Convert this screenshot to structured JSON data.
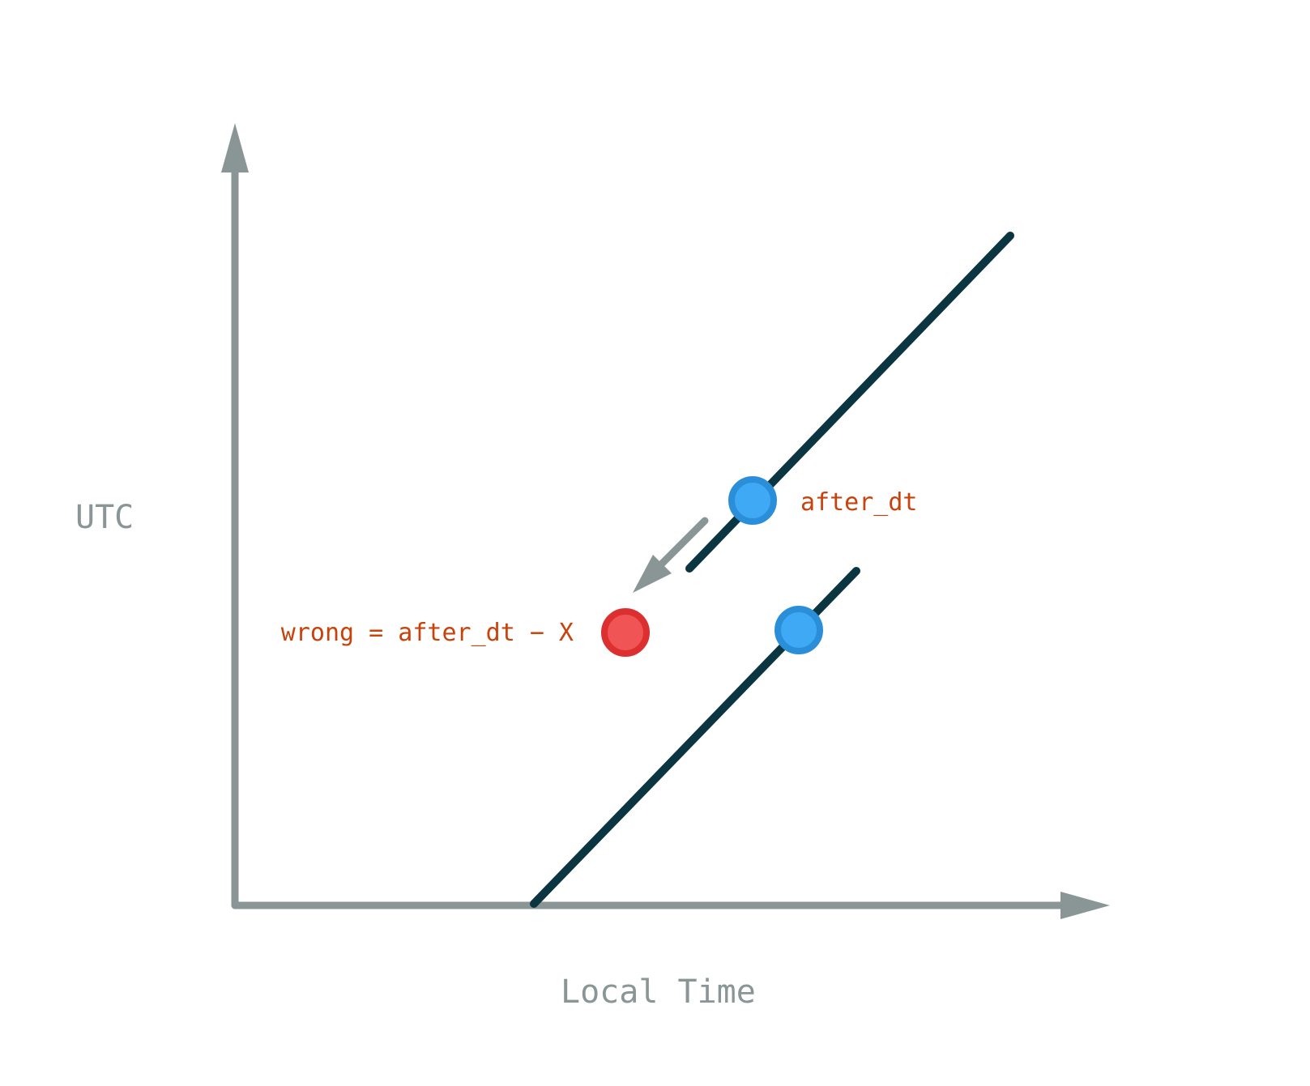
{
  "axes": {
    "x_label": "Local Time",
    "y_label": "UTC"
  },
  "annotations": {
    "after_dt": "after_dt",
    "wrong": "wrong = after_dt − X"
  },
  "colors": {
    "axis": "#8a9696",
    "line": "#0b3540",
    "point_fill": "#3fa9f5",
    "point_stroke": "#2a8ed8",
    "wrong_fill": "#f05454",
    "wrong_stroke": "#dc3030",
    "label": "#c8420c"
  }
}
